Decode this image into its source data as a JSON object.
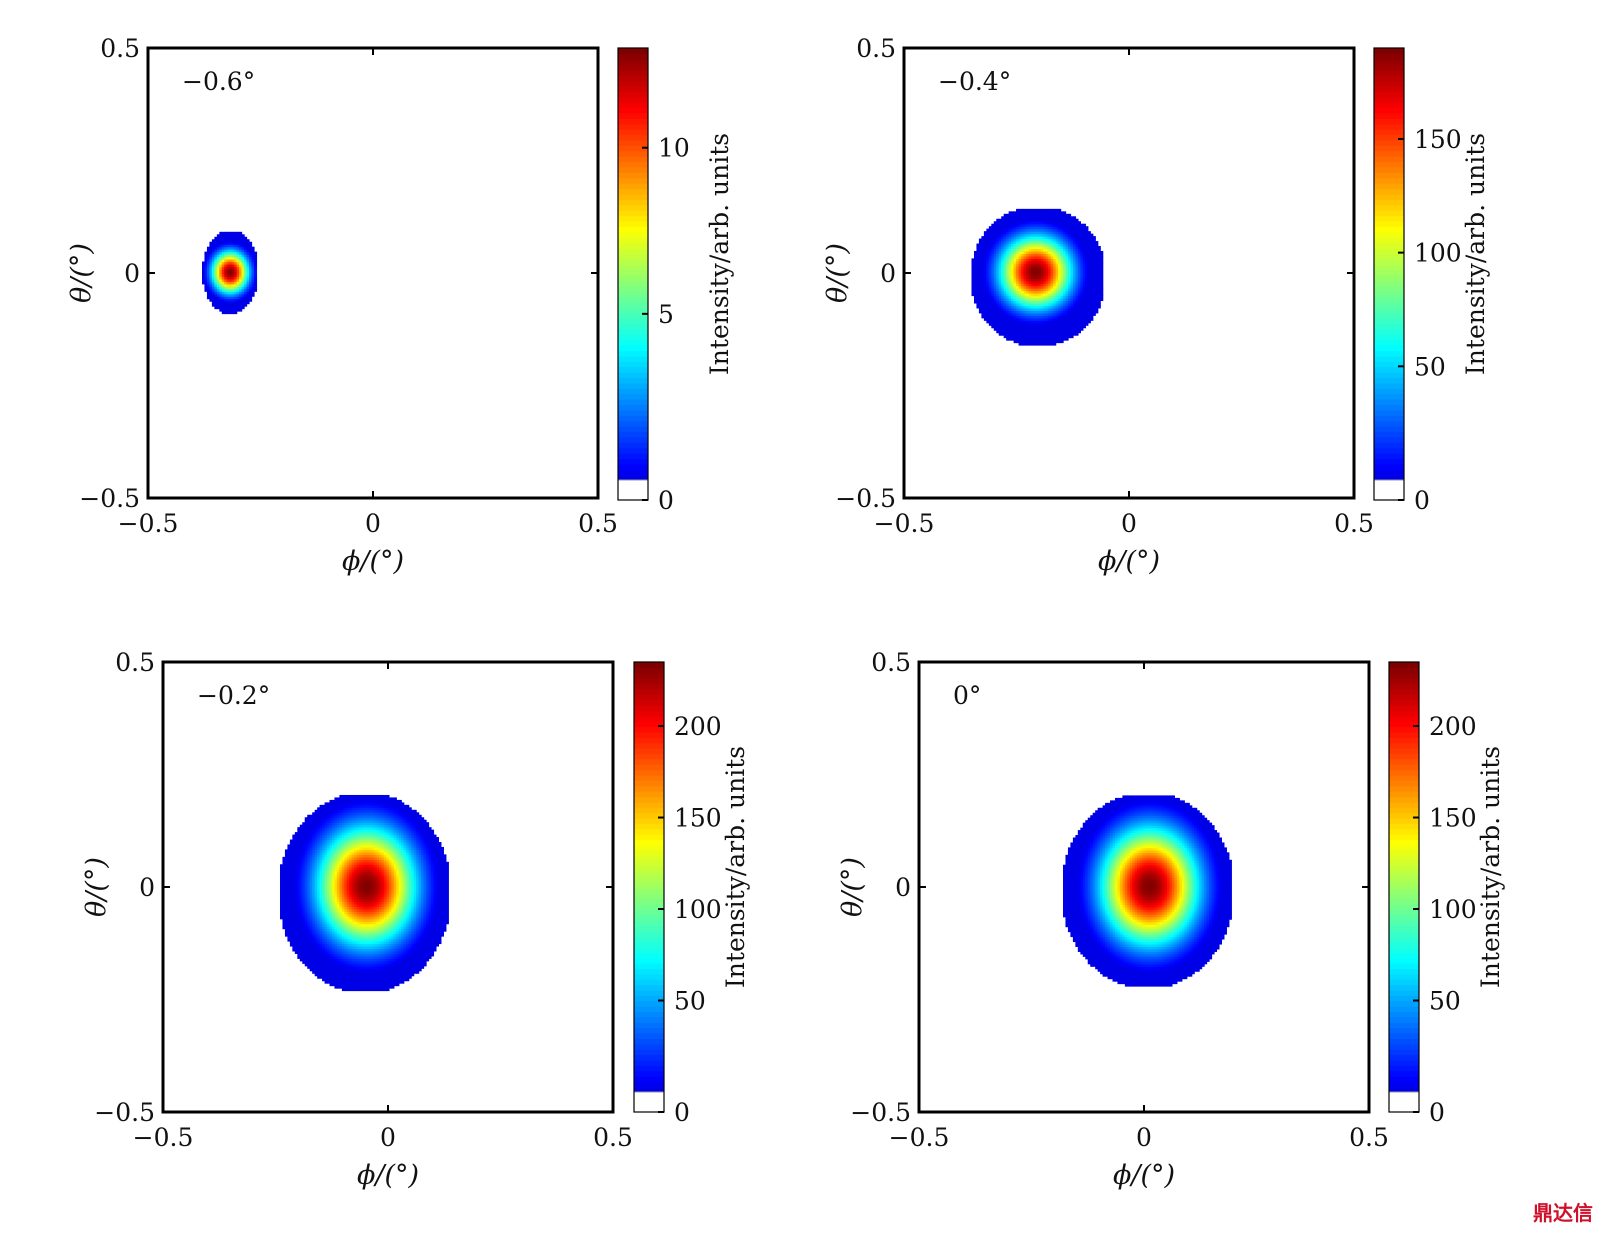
{
  "chart_data": [
    {
      "type": "heatmap",
      "label": "−0.6°",
      "xlabel": "ϕ/(°)",
      "ylabel": "θ/(°)",
      "xlim": [
        -0.5,
        0.5
      ],
      "ylim": [
        -0.5,
        0.5
      ],
      "xticks": [
        -0.5,
        0,
        0.5
      ],
      "xtick_labels": [
        "−0.5",
        "0",
        "0.5"
      ],
      "yticks": [
        -0.5,
        0,
        0.5
      ],
      "ytick_labels": [
        "−0.5",
        "0",
        "0.5"
      ],
      "colorbar": {
        "label": "Intensity/arb. units",
        "min": 0,
        "max": 13,
        "ticks": [
          0,
          5,
          10
        ],
        "tick_labels": [
          "0",
          "5",
          "10"
        ]
      },
      "spot": {
        "center": [
          -0.32,
          0.0
        ],
        "sigma": [
          0.028,
          0.032
        ],
        "peak": 13,
        "x_extent": [
          -0.38,
          -0.26
        ],
        "y_extent": [
          -0.09,
          0.09
        ]
      }
    },
    {
      "type": "heatmap",
      "label": "−0.4°",
      "xlabel": "ϕ/(°)",
      "ylabel": "θ/(°)",
      "xlim": [
        -0.5,
        0.5
      ],
      "ylim": [
        -0.5,
        0.5
      ],
      "xticks": [
        -0.5,
        0,
        0.5
      ],
      "xtick_labels": [
        "−0.5",
        "0",
        "0.5"
      ],
      "yticks": [
        -0.5,
        0,
        0.5
      ],
      "ytick_labels": [
        "−0.5",
        "0",
        "0.5"
      ],
      "colorbar": {
        "label": "Intensity/arb. units",
        "min": 0,
        "max": 190,
        "ticks": [
          0,
          50,
          100,
          150
        ],
        "tick_labels": [
          "0",
          "50",
          "100",
          "150"
        ]
      },
      "spot": {
        "center": [
          -0.21,
          0.0
        ],
        "sigma": [
          0.055,
          0.055
        ],
        "peak": 190,
        "x_extent": [
          -0.35,
          -0.06
        ],
        "y_extent": [
          -0.16,
          0.14
        ]
      }
    },
    {
      "type": "heatmap",
      "label": "−0.2°",
      "xlabel": "ϕ/(°)",
      "ylabel": "θ/(°)",
      "xlim": [
        -0.5,
        0.5
      ],
      "ylim": [
        -0.5,
        0.5
      ],
      "xticks": [
        -0.5,
        0,
        0.5
      ],
      "xtick_labels": [
        "−0.5",
        "0",
        "0.5"
      ],
      "yticks": [
        -0.5,
        0,
        0.5
      ],
      "ytick_labels": [
        "−0.5",
        "0",
        "0.5"
      ],
      "colorbar": {
        "label": "Intensity/arb. units",
        "min": 0,
        "max": 235,
        "ticks": [
          0,
          50,
          100,
          150,
          200
        ],
        "tick_labels": [
          "0",
          "50",
          "100",
          "150",
          "200"
        ]
      },
      "spot": {
        "center": [
          -0.05,
          0.0
        ],
        "sigma": [
          0.075,
          0.09
        ],
        "peak": 235,
        "x_extent": [
          -0.24,
          0.13
        ],
        "y_extent": [
          -0.23,
          0.2
        ]
      }
    },
    {
      "type": "heatmap",
      "label": "0°",
      "xlabel": "ϕ/(°)",
      "ylabel": "θ/(°)",
      "xlim": [
        -0.5,
        0.5
      ],
      "ylim": [
        -0.5,
        0.5
      ],
      "xticks": [
        -0.5,
        0,
        0.5
      ],
      "xtick_labels": [
        "−0.5",
        "0",
        "0.5"
      ],
      "yticks": [
        -0.5,
        0,
        0.5
      ],
      "ytick_labels": [
        "−0.5",
        "0",
        "0.5"
      ],
      "colorbar": {
        "label": "Intensity/arb. units",
        "min": 0,
        "max": 235,
        "ticks": [
          0,
          50,
          100,
          150,
          200
        ],
        "tick_labels": [
          "0",
          "50",
          "100",
          "150",
          "200"
        ]
      },
      "spot": {
        "center": [
          0.01,
          0.0
        ],
        "sigma": [
          0.075,
          0.09
        ],
        "peak": 235,
        "x_extent": [
          -0.18,
          0.19
        ],
        "y_extent": [
          -0.22,
          0.2
        ]
      }
    }
  ],
  "colormap": "jet",
  "background_color": "#ffffff",
  "watermark": "鼎达信"
}
